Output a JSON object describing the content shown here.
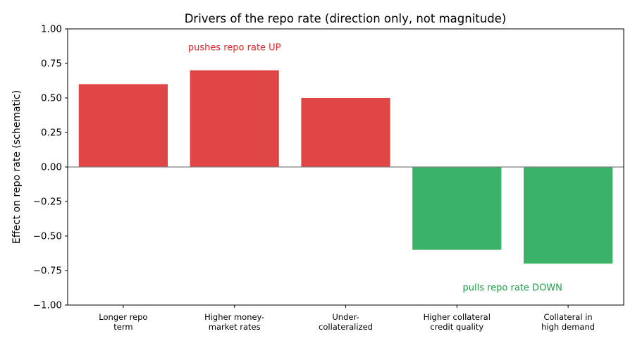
{
  "chart_data": {
    "type": "bar",
    "title": "Drivers of the repo rate (direction only, not magnitude)",
    "xlabel": "",
    "ylabel": "Effect on repo rate (schematic)",
    "ylim": [
      -1.0,
      1.0
    ],
    "yticks": [
      "1.00",
      "0.75",
      "0.50",
      "0.25",
      "0.00",
      "−0.25",
      "−0.50",
      "−0.75",
      "−1.00"
    ],
    "ytick_values": [
      1.0,
      0.75,
      0.5,
      0.25,
      0.0,
      -0.25,
      -0.5,
      -0.75,
      -1.0
    ],
    "categories": [
      [
        "Longer repo",
        "term"
      ],
      [
        "Higher money-",
        "market rates"
      ],
      [
        "Under-",
        "collateralized"
      ],
      [
        "Higher collateral",
        "credit quality"
      ],
      [
        "Collateral in",
        "high demand"
      ]
    ],
    "values": [
      0.6,
      0.7,
      0.5,
      -0.6,
      -0.7
    ],
    "colors": [
      "#e04646",
      "#e04646",
      "#e04646",
      "#3cb168",
      "#3cb168"
    ],
    "zero_line_color": "#808080",
    "grid": false,
    "annotations": [
      {
        "text": "pushes repo rate UP",
        "x": 1.0,
        "y": 0.87,
        "color": "#dc2a2a"
      },
      {
        "text": "pulls repo rate DOWN",
        "x": 3.5,
        "y": -0.87,
        "color": "#1fa14a"
      }
    ]
  }
}
